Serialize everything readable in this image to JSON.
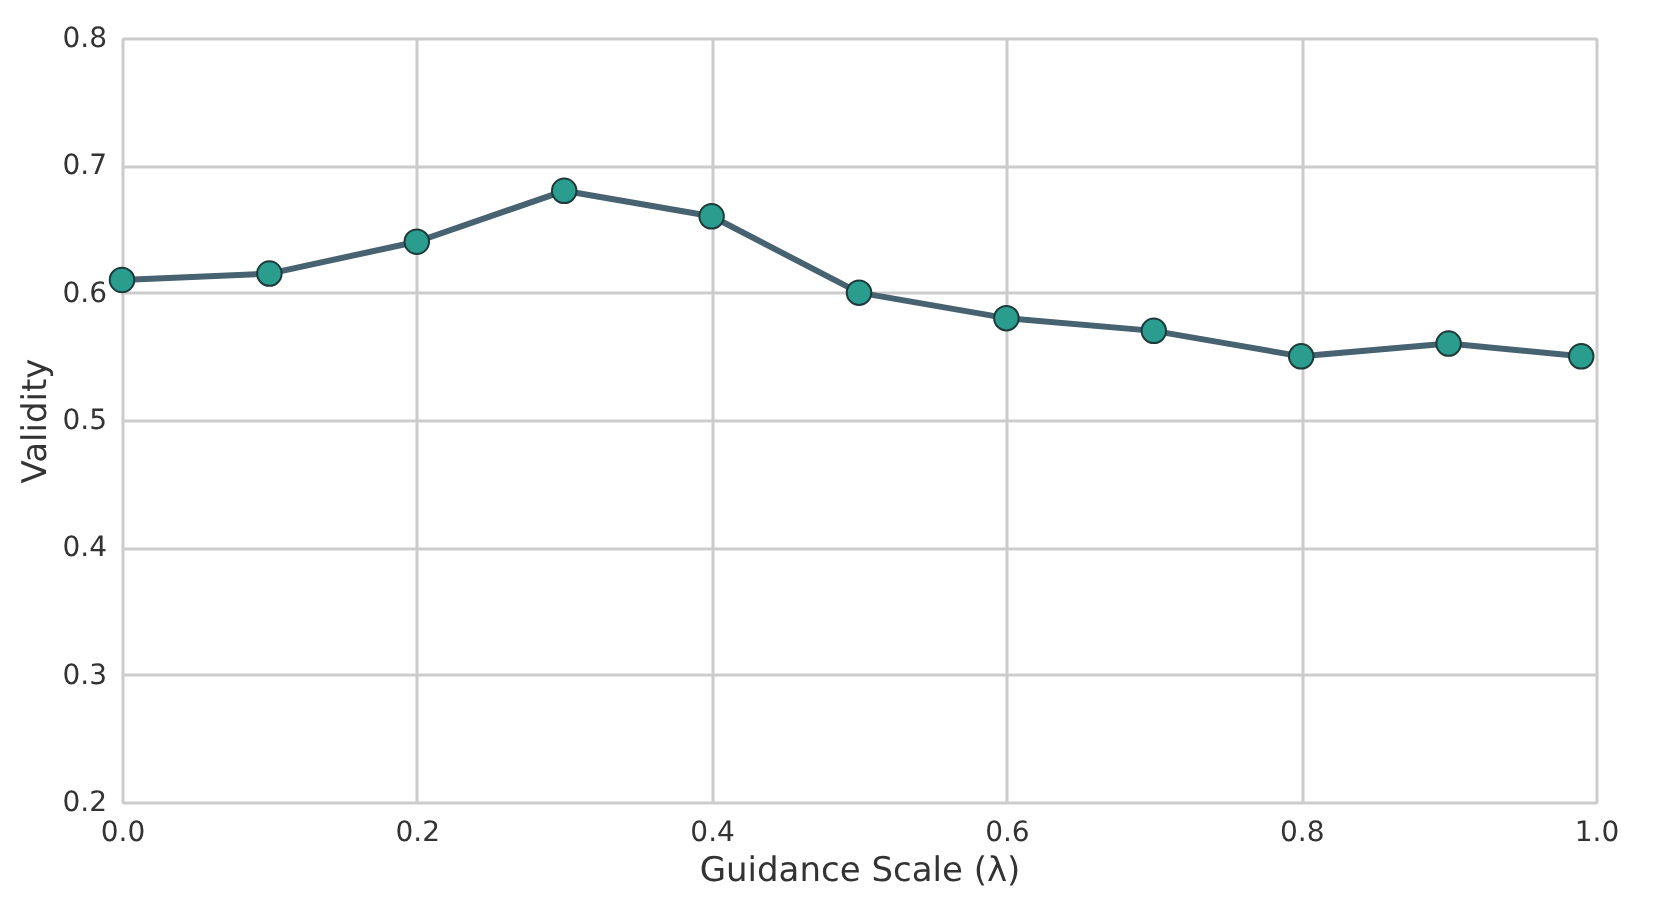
{
  "chart_data": {
    "type": "line",
    "xlabel": "Guidance Scale (λ)",
    "ylabel": "Validity",
    "x": [
      0.0,
      0.1,
      0.2,
      0.3,
      0.4,
      0.5,
      0.6,
      0.7,
      0.8,
      0.9,
      0.99
    ],
    "series": [
      {
        "color": "#476270",
        "values": [
          0.61,
          0.615,
          0.64,
          0.68,
          0.66,
          0.6,
          0.58,
          0.57,
          0.55,
          0.56,
          0.55
        ]
      }
    ],
    "marker": "circle",
    "line_style": "solid",
    "xlim": [
      0.0,
      1.0
    ],
    "xticks": [
      {
        "value": 0,
        "label": "0.0"
      },
      0.2,
      0.4,
      0.6,
      0.8,
      {
        "value": 1,
        "label": "1.0"
      }
    ],
    "ylim": [
      0.2,
      0.8
    ],
    "yticks": [
      0.2,
      0.3,
      0.4,
      0.5,
      0.6,
      0.7,
      0.8
    ],
    "grid": true
  }
}
